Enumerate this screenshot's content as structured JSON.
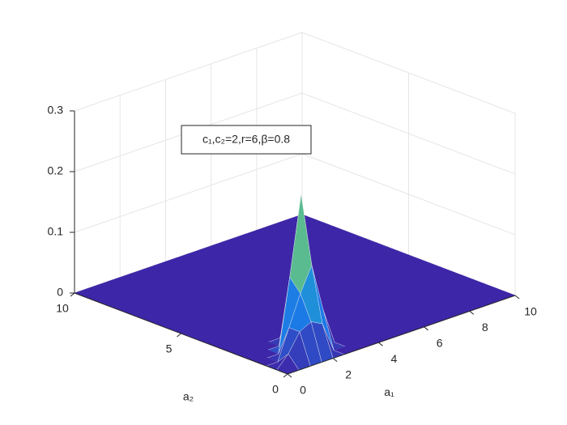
{
  "chart_data": {
    "type": "surface",
    "annotation": "c₁,c₂=2,r=6,β=0.8",
    "x_label": "a₁",
    "y_label": "a₂",
    "x": [
      0,
      0.5,
      1,
      1.5,
      2,
      2.5,
      3,
      3.5,
      4,
      4.5,
      5,
      5.5,
      6,
      6.5,
      7,
      7.5,
      8,
      8.5,
      9,
      9.5,
      10
    ],
    "y": [
      0,
      0.5,
      1,
      1.5,
      2,
      2.5,
      3,
      3.5,
      4,
      4.5,
      5,
      5.5,
      6,
      6.5,
      7,
      7.5,
      8,
      8.5,
      9,
      9.5,
      10
    ],
    "z": [
      [
        0,
        0,
        0,
        0,
        0,
        0,
        0,
        0,
        0,
        0,
        0,
        0,
        0,
        0,
        0,
        0,
        0,
        0,
        0,
        0,
        0
      ],
      [
        0,
        0.02,
        0.05,
        0.06,
        0.05,
        0,
        0,
        0,
        0,
        0,
        0,
        0,
        0,
        0,
        0,
        0,
        0,
        0,
        0,
        0,
        0
      ],
      [
        0,
        0,
        0.05,
        0.1,
        0.14,
        0.06,
        0,
        0,
        0,
        0,
        0,
        0,
        0,
        0,
        0,
        0,
        0,
        0,
        0,
        0,
        0
      ],
      [
        0,
        0,
        0,
        0.12,
        0.25,
        0.1,
        0,
        0,
        0,
        0,
        0,
        0,
        0,
        0,
        0,
        0,
        0,
        0,
        0,
        0,
        0
      ],
      [
        0,
        0,
        0,
        0,
        0.06,
        0.03,
        0,
        0,
        0,
        0,
        0,
        0,
        0,
        0,
        0,
        0,
        0,
        0,
        0,
        0,
        0
      ],
      [
        0,
        0,
        0,
        0,
        0,
        0,
        0,
        0,
        0,
        0,
        0,
        0,
        0,
        0,
        0,
        0,
        0,
        0,
        0,
        0,
        0
      ],
      [
        0,
        0,
        0,
        0,
        0,
        0,
        0,
        0,
        0,
        0,
        0,
        0,
        0,
        0,
        0,
        0,
        0,
        0,
        0,
        0,
        0
      ],
      [
        0,
        0,
        0,
        0,
        0,
        0,
        0,
        0,
        0,
        0,
        0,
        0,
        0,
        0,
        0,
        0,
        0,
        0,
        0,
        0,
        0
      ],
      [
        0,
        0,
        0,
        0,
        0,
        0,
        0,
        0,
        0,
        0,
        0,
        0,
        0,
        0,
        0,
        0,
        0,
        0,
        0,
        0,
        0
      ],
      [
        0,
        0,
        0,
        0,
        0,
        0,
        0,
        0,
        0,
        0,
        0,
        0,
        0,
        0,
        0,
        0,
        0,
        0,
        0,
        0,
        0
      ],
      [
        0,
        0,
        0,
        0,
        0,
        0,
        0,
        0,
        0,
        0,
        0,
        0,
        0,
        0,
        0,
        0,
        0,
        0,
        0,
        0,
        0
      ],
      [
        0,
        0,
        0,
        0,
        0,
        0,
        0,
        0,
        0,
        0,
        0,
        0,
        0,
        0,
        0,
        0,
        0,
        0,
        0,
        0,
        0
      ],
      [
        0,
        0,
        0,
        0,
        0,
        0,
        0,
        0,
        0,
        0,
        0,
        0,
        0,
        0,
        0,
        0,
        0,
        0,
        0,
        0,
        0
      ],
      [
        0,
        0,
        0,
        0,
        0,
        0,
        0,
        0,
        0,
        0,
        0,
        0,
        0,
        0,
        0,
        0,
        0,
        0,
        0,
        0,
        0
      ],
      [
        0,
        0,
        0,
        0,
        0,
        0,
        0,
        0,
        0,
        0,
        0,
        0,
        0,
        0,
        0,
        0,
        0,
        0,
        0,
        0,
        0
      ],
      [
        0,
        0,
        0,
        0,
        0,
        0,
        0,
        0,
        0,
        0,
        0,
        0,
        0,
        0,
        0,
        0,
        0,
        0,
        0,
        0,
        0
      ],
      [
        0,
        0,
        0,
        0,
        0,
        0,
        0,
        0,
        0,
        0,
        0,
        0,
        0,
        0,
        0,
        0,
        0,
        0,
        0,
        0,
        0
      ],
      [
        0,
        0,
        0,
        0,
        0,
        0,
        0,
        0,
        0,
        0,
        0,
        0,
        0,
        0,
        0,
        0,
        0,
        0,
        0,
        0,
        0
      ],
      [
        0,
        0,
        0,
        0,
        0,
        0,
        0,
        0,
        0,
        0,
        0,
        0,
        0,
        0,
        0,
        0,
        0,
        0,
        0,
        0,
        0
      ],
      [
        0,
        0,
        0,
        0,
        0,
        0,
        0,
        0,
        0,
        0,
        0,
        0,
        0,
        0,
        0,
        0,
        0,
        0,
        0,
        0,
        0
      ],
      [
        0,
        0,
        0,
        0,
        0,
        0,
        0,
        0,
        0,
        0,
        0,
        0,
        0,
        0,
        0,
        0,
        0,
        0,
        0,
        0,
        0
      ]
    ],
    "xlim": [
      0,
      10
    ],
    "xticks": [
      0,
      2,
      4,
      6,
      8,
      10
    ],
    "ylim": [
      0,
      10
    ],
    "yticks": [
      0,
      5,
      10
    ],
    "zlim": [
      0,
      0.3
    ],
    "zticks": [
      0,
      0.1,
      0.2,
      0.3
    ],
    "grid": true,
    "colormap": "parula"
  }
}
